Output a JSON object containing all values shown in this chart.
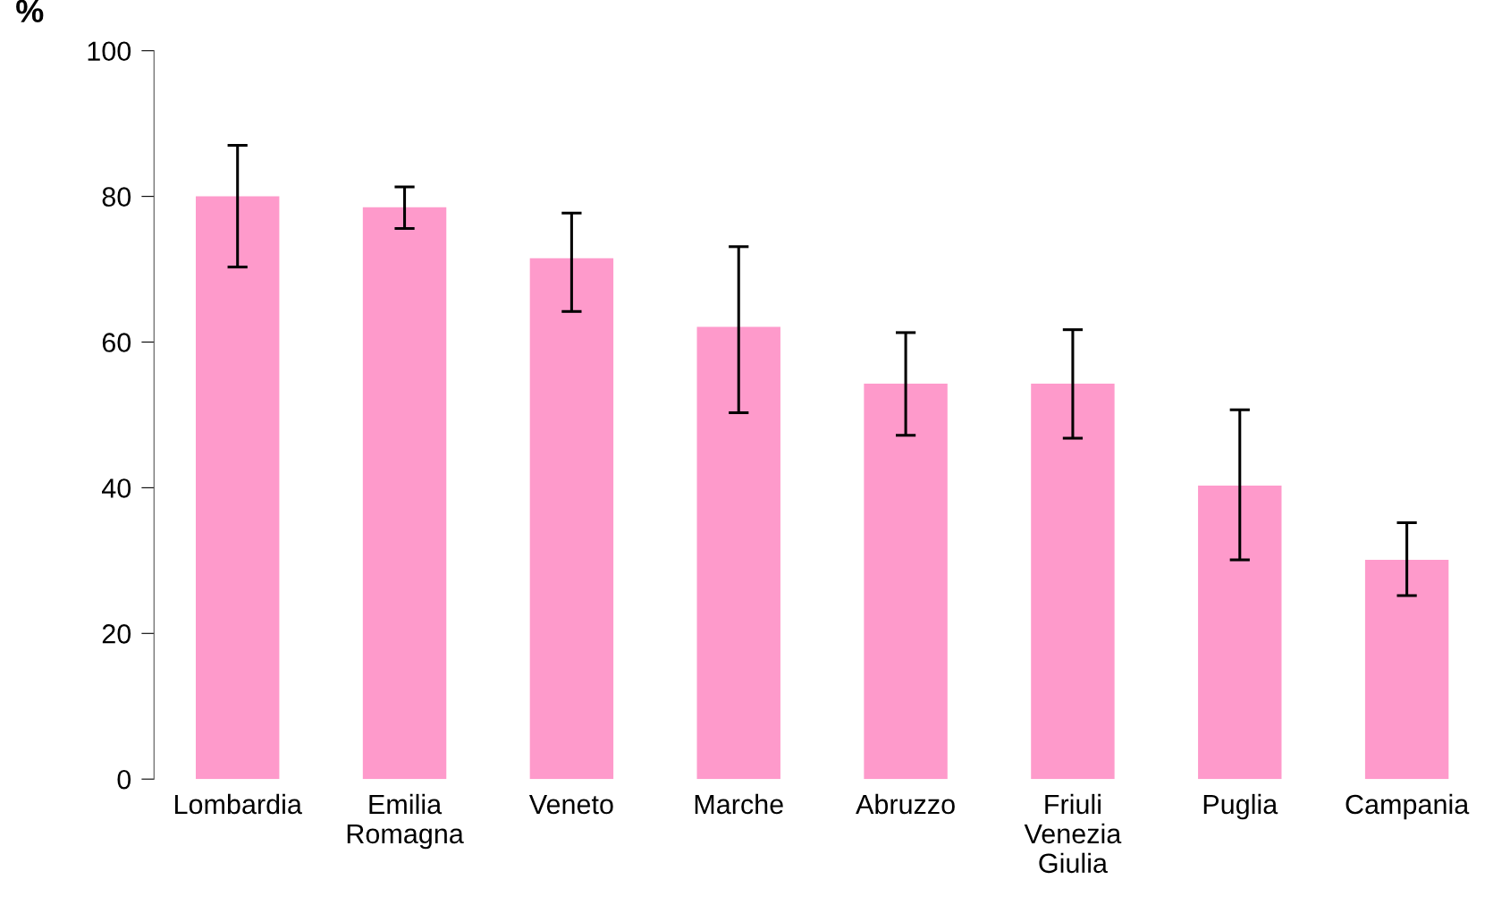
{
  "chart_data": {
    "type": "bar",
    "ylabel": "%",
    "categories": [
      "Lombardia",
      "Emilia\nRomagna",
      "Veneto",
      "Marche",
      "Abruzzo",
      "Friuli\nVenezia\nGiulia",
      "Puglia",
      "Campania"
    ],
    "values": [
      80.0,
      78.5,
      71.5,
      62.1,
      54.3,
      54.3,
      40.3,
      30.1
    ],
    "errors": [
      [
        70.3,
        87.0
      ],
      [
        75.6,
        81.3
      ],
      [
        64.2,
        77.7
      ],
      [
        50.3,
        73.1
      ],
      [
        47.2,
        61.3
      ],
      [
        46.8,
        61.7
      ],
      [
        30.1,
        50.7
      ],
      [
        25.2,
        35.2
      ]
    ],
    "color": "#fe9acb",
    "ylim": [
      0,
      100
    ],
    "yticks": [
      0,
      20,
      40,
      60,
      80,
      100
    ],
    "grid": false,
    "legend": false
  }
}
